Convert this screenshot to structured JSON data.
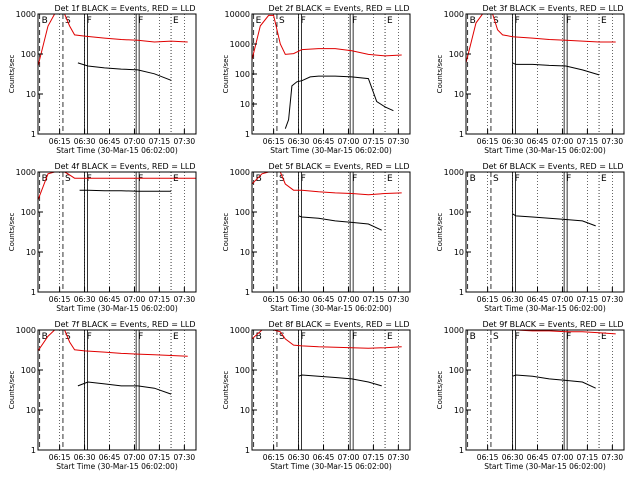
{
  "colors": {
    "events": "#000000",
    "lld": "#e00000",
    "axes": "#000000"
  },
  "chart_data": [
    {
      "type": "line",
      "title": "Det 1f BLACK = Events, RED = LLD",
      "xlabel": "Start Time (30-Mar-15 06:02:00)",
      "ylabel": "Counts/sec",
      "xticks": [
        "06:15",
        "06:30",
        "06:45",
        "07:00",
        "07:15",
        "07:30"
      ],
      "yticks": [
        "1",
        "10",
        "100",
        "1000"
      ],
      "yscale": "log",
      "ylim": [
        1,
        1000
      ],
      "xlim_min": [
        0,
        95
      ],
      "markers": [
        "B",
        "S",
        "F",
        "F",
        "E"
      ],
      "series": [
        {
          "name": "Events",
          "x": [
            19,
            20,
            24,
            30,
            40,
            50,
            60,
            70,
            80
          ],
          "y": [
            null,
            null,
            60,
            50,
            45,
            42,
            40,
            32,
            22
          ]
        },
        {
          "name": "LLD",
          "x": [
            0,
            6,
            10,
            13,
            16,
            19,
            22,
            28,
            40,
            50,
            60,
            70,
            80,
            90
          ],
          "y": [
            50,
            500,
            1000,
            1000,
            1000,
            500,
            300,
            280,
            250,
            230,
            220,
            200,
            210,
            200
          ]
        }
      ]
    },
    {
      "type": "line",
      "title": "Det 2f BLACK = Events, RED = LLD",
      "xlabel": "Start Time (30-Mar-15 06:02:00)",
      "ylabel": "Counts/sec",
      "xticks": [
        "06:15",
        "06:30",
        "06:45",
        "07:00",
        "07:15",
        "07:30"
      ],
      "yticks": [
        "1",
        "10",
        "100",
        "1000",
        "10000"
      ],
      "yscale": "log",
      "ylim": [
        1,
        10000
      ],
      "markers": [
        "E",
        "S",
        "F",
        "F",
        "E"
      ],
      "series": [
        {
          "name": "Events",
          "x": [
            20,
            22,
            24,
            27,
            30,
            35,
            40,
            50,
            60,
            70,
            75,
            80,
            85
          ],
          "y": [
            1.5,
            3,
            40,
            55,
            60,
            80,
            85,
            85,
            80,
            70,
            12,
            8,
            6
          ]
        },
        {
          "name": "LLD",
          "x": [
            0,
            5,
            10,
            13,
            17,
            20,
            25,
            30,
            40,
            50,
            60,
            70,
            80,
            90
          ],
          "y": [
            300,
            4000,
            9000,
            9000,
            1000,
            450,
            480,
            650,
            700,
            700,
            600,
            450,
            400,
            430
          ]
        }
      ]
    },
    {
      "type": "line",
      "title": "Det 3f BLACK = Events, RED = LLD",
      "xlabel": "Start Time (30-Mar-15 06:02:00)",
      "ylabel": "Counts/sec",
      "xticks": [
        "06:15",
        "06:30",
        "06:45",
        "07:00",
        "07:15",
        "07:30"
      ],
      "yticks": [
        "1",
        "10",
        "100",
        "1000"
      ],
      "yscale": "log",
      "ylim": [
        1,
        1000
      ],
      "markers": [
        "B",
        "S",
        "F",
        "F",
        "E"
      ],
      "series": [
        {
          "name": "Events",
          "x": [
            28,
            30,
            40,
            50,
            60,
            70,
            80
          ],
          "y": [
            60,
            55,
            55,
            52,
            50,
            40,
            30
          ]
        },
        {
          "name": "LLD",
          "x": [
            0,
            6,
            10,
            13,
            16,
            19,
            22,
            28,
            40,
            50,
            60,
            70,
            80,
            90
          ],
          "y": [
            60,
            600,
            1000,
            1000,
            1000,
            400,
            300,
            270,
            250,
            230,
            220,
            210,
            200,
            200
          ]
        }
      ]
    },
    {
      "type": "line",
      "title": "Det 4f BLACK = Events, RED = LLD",
      "xlabel": "Start Time (30-Mar-15 06:02:00)",
      "ylabel": "Counts/sec",
      "xticks": [
        "06:15",
        "06:30",
        "06:45",
        "07:00",
        "07:15",
        "07:30"
      ],
      "yticks": [
        "1",
        "10",
        "100",
        "1000"
      ],
      "yscale": "log",
      "ylim": [
        1,
        1000
      ],
      "markers": [
        "B",
        "S",
        "F",
        "F",
        "E"
      ],
      "series": [
        {
          "name": "Events",
          "x": [
            25,
            30,
            40,
            50,
            60,
            70,
            80
          ],
          "y": [
            350,
            350,
            340,
            340,
            330,
            330,
            330
          ]
        },
        {
          "name": "LLD",
          "x": [
            0,
            6,
            10,
            13,
            16,
            18,
            22,
            28,
            40,
            60,
            80,
            95
          ],
          "y": [
            200,
            900,
            1000,
            1000,
            1000,
            900,
            700,
            700,
            700,
            700,
            700,
            700
          ]
        }
      ]
    },
    {
      "type": "line",
      "title": "Det 5f BLACK = Events, RED = LLD",
      "xlabel": "Start Time (30-Mar-15 06:02:00)",
      "ylabel": "Counts/sec",
      "xticks": [
        "06:15",
        "06:30",
        "06:45",
        "07:00",
        "07:15",
        "07:30"
      ],
      "yticks": [
        "1",
        "10",
        "100",
        "1000"
      ],
      "yscale": "log",
      "ylim": [
        1,
        1000
      ],
      "markers": [
        "B",
        "S",
        "F",
        "F",
        "E"
      ],
      "series": [
        {
          "name": "Events",
          "x": [
            28,
            30,
            40,
            50,
            60,
            70,
            78
          ],
          "y": [
            80,
            75,
            70,
            60,
            55,
            50,
            35
          ]
        },
        {
          "name": "LLD",
          "x": [
            0,
            6,
            10,
            13,
            17,
            20,
            25,
            30,
            40,
            50,
            60,
            70,
            80,
            90
          ],
          "y": [
            500,
            900,
            1000,
            1000,
            1000,
            500,
            350,
            350,
            320,
            300,
            290,
            270,
            290,
            300
          ]
        }
      ]
    },
    {
      "type": "line",
      "title": "Det 6f BLACK = Events, RED = LLD",
      "xlabel": "Start Time (30-Mar-15 06:02:00)",
      "ylabel": "Counts/sec",
      "xticks": [
        "06:15",
        "06:30",
        "06:45",
        "07:00",
        "07:15",
        "07:30"
      ],
      "yticks": [
        "1",
        "10",
        "100",
        "1000"
      ],
      "yscale": "log",
      "ylim": [
        1,
        1000
      ],
      "markers": [
        "B",
        "S",
        "F",
        "F",
        "E"
      ],
      "series": [
        {
          "name": "Events",
          "x": [
            28,
            30,
            40,
            50,
            60,
            70,
            78
          ],
          "y": [
            90,
            80,
            75,
            70,
            65,
            60,
            45
          ]
        }
      ]
    },
    {
      "type": "line",
      "title": "Det 7f BLACK = Events, RED = LLD",
      "xlabel": "Start Time (30-Mar-15 06:02:00)",
      "ylabel": "Counts/sec",
      "xticks": [
        "06:15",
        "06:30",
        "06:45",
        "07:00",
        "07:15",
        "07:30"
      ],
      "yticks": [
        "1",
        "10",
        "100",
        "1000"
      ],
      "yscale": "log",
      "ylim": [
        1,
        1000
      ],
      "markers": [
        "B",
        "S",
        "F",
        "F",
        "E"
      ],
      "series": [
        {
          "name": "Events",
          "x": [
            24,
            30,
            40,
            50,
            60,
            70,
            80
          ],
          "y": [
            40,
            50,
            45,
            40,
            40,
            35,
            25
          ]
        },
        {
          "name": "LLD",
          "x": [
            0,
            6,
            10,
            13,
            16,
            19,
            22,
            28,
            40,
            50,
            60,
            70,
            80,
            90
          ],
          "y": [
            300,
            700,
            1000,
            1000,
            1000,
            500,
            320,
            300,
            280,
            260,
            250,
            240,
            230,
            220
          ]
        }
      ]
    },
    {
      "type": "line",
      "title": "Det 8f BLACK = Events, RED = LLD",
      "xlabel": "Start Time (30-Mar-15 06:02:00)",
      "ylabel": "Counts/sec",
      "xticks": [
        "06:15",
        "06:30",
        "06:45",
        "07:00",
        "07:15",
        "07:30"
      ],
      "yticks": [
        "1",
        "10",
        "100",
        "1000"
      ],
      "yscale": "log",
      "ylim": [
        1,
        1000
      ],
      "markers": [
        "B",
        "S",
        "F",
        "F",
        "E"
      ],
      "series": [
        {
          "name": "Events",
          "x": [
            28,
            30,
            40,
            50,
            60,
            70,
            78
          ],
          "y": [
            70,
            75,
            70,
            65,
            60,
            50,
            40
          ]
        },
        {
          "name": "LLD",
          "x": [
            0,
            6,
            10,
            13,
            17,
            20,
            25,
            30,
            40,
            50,
            60,
            70,
            80,
            90
          ],
          "y": [
            600,
            1000,
            1000,
            1000,
            900,
            600,
            420,
            400,
            380,
            370,
            360,
            350,
            360,
            380
          ]
        }
      ]
    },
    {
      "type": "line",
      "title": "Det 9f BLACK = Events, RED = LLD",
      "xlabel": "Start Time (30-Mar-15 06:02:00)",
      "ylabel": "Counts/sec",
      "xticks": [
        "06:15",
        "06:30",
        "06:45",
        "07:00",
        "07:15",
        "07:30"
      ],
      "yticks": [
        "1",
        "10",
        "100",
        "1000"
      ],
      "yscale": "log",
      "ylim": [
        1,
        1000
      ],
      "markers": [
        "B",
        "S",
        "F",
        "F",
        "E"
      ],
      "series": [
        {
          "name": "Events",
          "x": [
            28,
            30,
            40,
            50,
            60,
            70,
            78
          ],
          "y": [
            70,
            75,
            70,
            60,
            55,
            50,
            35
          ]
        },
        {
          "name": "LLD",
          "x": [
            25,
            30,
            40,
            50,
            60,
            70,
            80,
            90
          ],
          "y": [
            1000,
            1000,
            950,
            950,
            900,
            900,
            850,
            800
          ]
        }
      ]
    }
  ]
}
